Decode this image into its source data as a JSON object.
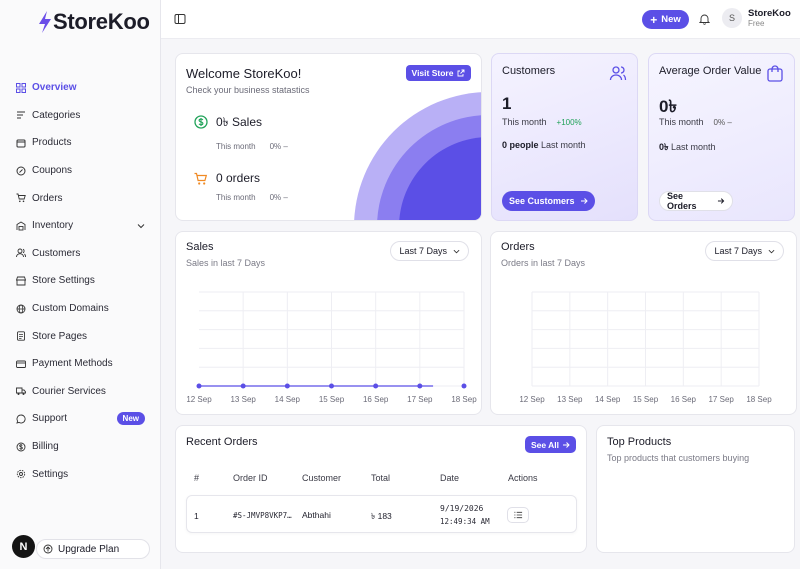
{
  "brand": {
    "name": "StoreKoo"
  },
  "sidebar": {
    "items": [
      {
        "label": "Overview",
        "icon": "layout-grid-icon"
      },
      {
        "label": "Categories",
        "icon": "list-filter-icon"
      },
      {
        "label": "Products",
        "icon": "package-icon"
      },
      {
        "label": "Coupons",
        "icon": "badge-percent-icon"
      },
      {
        "label": "Orders",
        "icon": "shopping-cart-icon"
      },
      {
        "label": "Inventory",
        "icon": "warehouse-icon"
      },
      {
        "label": "Customers",
        "icon": "users-icon"
      },
      {
        "label": "Store Settings",
        "icon": "store-icon"
      },
      {
        "label": "Custom Domains",
        "icon": "globe-icon"
      },
      {
        "label": "Store Pages",
        "icon": "file-text-icon"
      },
      {
        "label": "Payment Methods",
        "icon": "credit-card-icon"
      },
      {
        "label": "Courier Services",
        "icon": "truck-icon"
      },
      {
        "label": "Support",
        "icon": "message-circle-icon",
        "badge": "New"
      },
      {
        "label": "Billing",
        "icon": "dollar-circle-icon"
      },
      {
        "label": "Settings",
        "icon": "gear-icon"
      }
    ],
    "avatar_letter": "N",
    "upgrade_label": "Upgrade Plan"
  },
  "header": {
    "new_label": "New",
    "user": {
      "initial": "S",
      "name": "StoreKoo",
      "plan": "Free"
    }
  },
  "welcome": {
    "title": "Welcome StoreKoo!",
    "subtitle": "Check your business statastics",
    "visit_label": "Visit Store",
    "sales": {
      "value": "0৳ Sales",
      "period": "This month",
      "change": "0% –"
    },
    "orders": {
      "value": "0 orders",
      "period": "This month",
      "change": "0% –"
    }
  },
  "customers": {
    "title": "Customers",
    "value": "1",
    "period": "This month",
    "change": "+100%",
    "last_value": "0 people",
    "last_label": "Last month",
    "button": "See Customers"
  },
  "aov": {
    "title": "Average Order Value",
    "value": "0৳",
    "period": "This month",
    "change": "0% –",
    "last_value": "0৳",
    "last_label": "Last month",
    "button": "See Orders"
  },
  "sales_chart": {
    "title": "Sales",
    "subtitle": "Sales in last 7 Days",
    "range": "Last 7 Days"
  },
  "orders_chart": {
    "title": "Orders",
    "subtitle": "Orders in last 7 Days",
    "range": "Last 7 Days"
  },
  "chart_data": [
    {
      "type": "line",
      "x": [
        "12 Sep",
        "13 Sep",
        "14 Sep",
        "15 Sep",
        "16 Sep",
        "17 Sep",
        "18 Sep"
      ],
      "series": [
        {
          "values": [
            0,
            0,
            0,
            0,
            0,
            0,
            0
          ]
        }
      ],
      "grid": true,
      "color": "#5b4fe6"
    },
    {
      "type": "line",
      "x": [
        "12 Sep",
        "13 Sep",
        "14 Sep",
        "15 Sep",
        "16 Sep",
        "17 Sep",
        "18 Sep"
      ],
      "series": [],
      "grid": true
    }
  ],
  "recent_orders": {
    "title": "Recent Orders",
    "see_all": "See All",
    "columns": [
      "#",
      "Order ID",
      "Customer",
      "Total",
      "Date",
      "Actions"
    ],
    "rows": [
      {
        "num": "1",
        "order_id": "#S-JMVP8VKP7…",
        "customer": "Abthahi",
        "total": "৳ 183",
        "date": "9/19/2026",
        "time": "12:49:34 AM"
      }
    ]
  },
  "top_products": {
    "title": "Top Products",
    "subtitle": "Top products that customers buying"
  },
  "colors": {
    "accent": "#5b4fe6",
    "positive": "#22a35a"
  }
}
